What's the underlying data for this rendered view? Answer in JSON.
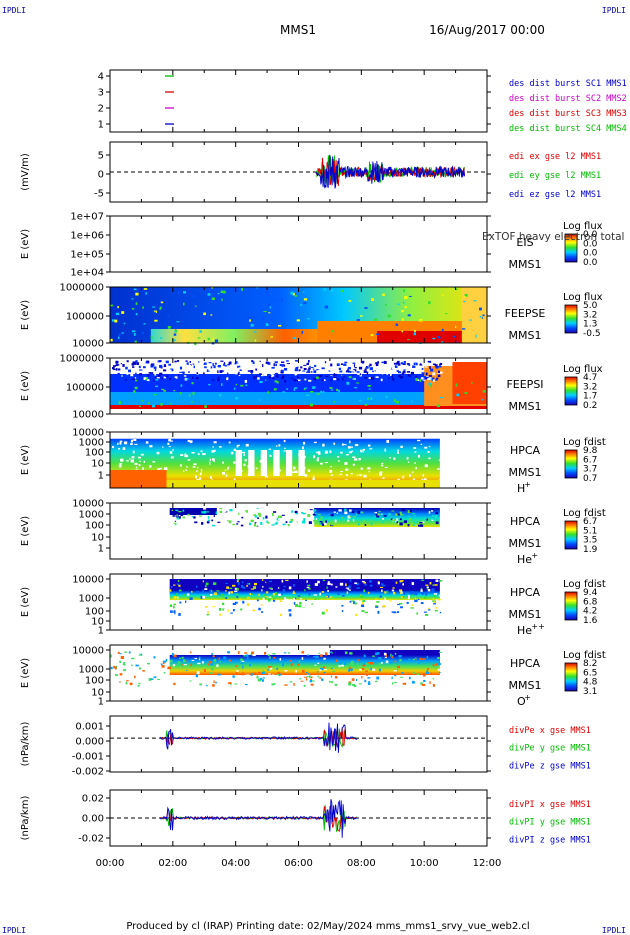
{
  "corners": {
    "tl": "IPDLI",
    "tr": "IPDLI",
    "bl": "IPDLI",
    "br": "IPDLI"
  },
  "header": {
    "mission": "MMS1",
    "datetime": "16/Aug/2017 00:00"
  },
  "footer": "Produced by cl (IRAP)   Printing date: 02/May/2024   mms_mms1_srvy_vue_web2.cl",
  "x_ticks": [
    "00:00",
    "02:00",
    "04:00",
    "06:00",
    "08:00",
    "10:00",
    "12:00"
  ],
  "colors": {
    "red": "#dd0000",
    "green": "#00bb00",
    "blue": "#0000cc",
    "magenta": "#cc00cc"
  },
  "chart_data": [
    {
      "type": "line",
      "panel": "burst",
      "ylabel": "",
      "yticks": [
        "4",
        "3",
        "2",
        "1"
      ],
      "legend": [
        {
          "text": "des dist burst SC1 MMS1",
          "color": "#0000cc"
        },
        {
          "text": "des dist burst SC2 MMS2",
          "color": "#cc00cc"
        },
        {
          "text": "des dist burst SC3 MMS3",
          "color": "#dd0000"
        },
        {
          "text": "des dist burst SC4 MMS4",
          "color": "#00bb00"
        }
      ]
    },
    {
      "type": "line",
      "panel": "edi",
      "ylabel": "(mV/m)",
      "yticks": [
        "5",
        "0",
        "-5"
      ],
      "ylim": [
        -7,
        7
      ],
      "legend": [
        {
          "text": "edi ex gse l2 MMS1",
          "color": "#dd0000"
        },
        {
          "text": "edi ey gse l2 MMS1",
          "color": "#00bb00"
        },
        {
          "text": "edi ez gse l2 MMS1",
          "color": "#0000cc"
        }
      ]
    },
    {
      "type": "heatmap",
      "panel": "eis",
      "ylabel": "E (eV)",
      "yticks": [
        "1e+07",
        "1e+06",
        "1e+05",
        "1e+04"
      ],
      "name_lines": [
        "EIS",
        "MMS1"
      ],
      "overlay_text": "ExTOF heavy electron total",
      "cbar_title": "Log flux",
      "cbar_ticks": [
        "0.0",
        "0.0",
        "0.0",
        "0.0"
      ]
    },
    {
      "type": "heatmap",
      "panel": "feepse",
      "ylabel": "E (eV)",
      "yticks": [
        "1000000",
        "100000",
        "10000"
      ],
      "name_lines": [
        "FEEPSE",
        "MMS1"
      ],
      "cbar_title": "Log flux",
      "cbar_ticks": [
        "5.0",
        "3.2",
        "1.3",
        "-0.5"
      ]
    },
    {
      "type": "heatmap",
      "panel": "feepsi",
      "ylabel": "E (eV)",
      "yticks": [
        "1000000",
        "100000",
        "10000"
      ],
      "name_lines": [
        "FEEPSI",
        "MMS1"
      ],
      "cbar_title": "Log flux",
      "cbar_ticks": [
        "4.7",
        "3.2",
        "1.7",
        "0.2"
      ]
    },
    {
      "type": "heatmap",
      "panel": "hpca_h",
      "ylabel": "E (eV)",
      "yticks": [
        "10000",
        "1000",
        "100",
        "10",
        "1"
      ],
      "name_lines": [
        "HPCA",
        "MMS1"
      ],
      "species": "H",
      "charge": "+",
      "cbar_title": "Log fdist",
      "cbar_ticks": [
        "9.8",
        "6.7",
        "3.7",
        "0.7"
      ]
    },
    {
      "type": "heatmap",
      "panel": "hpca_he",
      "ylabel": "E (eV)",
      "yticks": [
        "10000",
        "1000",
        "100",
        "10",
        "1"
      ],
      "name_lines": [
        "HPCA",
        "MMS1"
      ],
      "species": "He",
      "charge": "+",
      "cbar_title": "Log fdist",
      "cbar_ticks": [
        "6.7",
        "5.1",
        "3.5",
        "1.9"
      ]
    },
    {
      "type": "heatmap",
      "panel": "hpca_he2",
      "ylabel": "E (eV)",
      "yticks": [
        "10000",
        "1000",
        "100",
        "10",
        "1"
      ],
      "name_lines": [
        "HPCA",
        "MMS1"
      ],
      "species": "He",
      "charge": "++",
      "cbar_title": "Log fdist",
      "cbar_ticks": [
        "9.4",
        "6.8",
        "4.2",
        "1.6"
      ]
    },
    {
      "type": "heatmap",
      "panel": "hpca_o",
      "ylabel": "E (eV)",
      "yticks": [
        "10000",
        "1000",
        "100",
        "10",
        "1"
      ],
      "name_lines": [
        "HPCA",
        "MMS1"
      ],
      "species": "O",
      "charge": "+",
      "cbar_title": "Log fdist",
      "cbar_ticks": [
        "8.2",
        "6.5",
        "4.8",
        "3.1"
      ]
    },
    {
      "type": "line",
      "panel": "divpe",
      "ylabel": "(nPa/km)",
      "yticks": [
        "0.001",
        "0.000",
        "-0.001",
        "-0.002"
      ],
      "ylim": [
        -0.0023,
        0.0015
      ],
      "legend": [
        {
          "text": "divPe x gse MMS1",
          "color": "#dd0000"
        },
        {
          "text": "divPe y gse MMS1",
          "color": "#00bb00"
        },
        {
          "text": "divPe z gse MMS1",
          "color": "#0000cc"
        }
      ]
    },
    {
      "type": "line",
      "panel": "divpi",
      "ylabel": "(nPa/km)",
      "yticks": [
        "0.02",
        "0.00",
        "-0.02"
      ],
      "ylim": [
        -0.028,
        0.028
      ],
      "legend": [
        {
          "text": "divPI x gse MMS1",
          "color": "#dd0000"
        },
        {
          "text": "divPI y gse MMS1",
          "color": "#00bb00"
        },
        {
          "text": "divPI z gse MMS1",
          "color": "#0000cc"
        }
      ]
    }
  ]
}
